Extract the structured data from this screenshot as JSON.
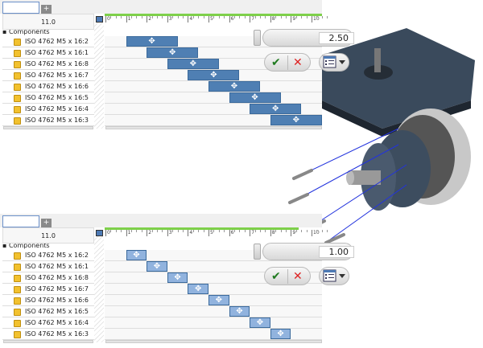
{
  "tab": {
    "add_label": "+"
  },
  "header": {
    "value": "11.0"
  },
  "timeline": {
    "ticks": [
      "0",
      "1",
      "2",
      "3",
      "4",
      "5",
      "6",
      "7",
      "8",
      "9",
      "10"
    ],
    "tree_root": "Components"
  },
  "top": {
    "slider_value": "2.50",
    "bar_color": "#4f7fb3",
    "rows": [
      {
        "label": "ISO 4762 M5 x 16:2",
        "start": 1,
        "end": 3.5
      },
      {
        "label": "ISO 4762 M5 x 16:1",
        "start": 2,
        "end": 4.5
      },
      {
        "label": "ISO 4762 M5 x 16:8",
        "start": 3,
        "end": 5.5
      },
      {
        "label": "ISO 4762 M5 x 16:7",
        "start": 4,
        "end": 6.5
      },
      {
        "label": "ISO 4762 M5 x 16:6",
        "start": 5,
        "end": 7.5
      },
      {
        "label": "ISO 4762 M5 x 16:5",
        "start": 6,
        "end": 8.5
      },
      {
        "label": "ISO 4762 M5 x 16:4",
        "start": 7,
        "end": 9.5
      },
      {
        "label": "ISO 4762 M5 x 16:3",
        "start": 8,
        "end": 10.5
      }
    ]
  },
  "bottom": {
    "slider_value": "1.00",
    "bar_color": "#91b3de",
    "rows": [
      {
        "label": "ISO 4762 M5 x 16:2",
        "start": 1,
        "end": 2
      },
      {
        "label": "ISO 4762 M5 x 16:1",
        "start": 2,
        "end": 3
      },
      {
        "label": "ISO 4762 M5 x 16:8",
        "start": 3,
        "end": 4
      },
      {
        "label": "ISO 4762 M5 x 16:7",
        "start": 4,
        "end": 5
      },
      {
        "label": "ISO 4762 M5 x 16:6",
        "start": 5,
        "end": 6
      },
      {
        "label": "ISO 4762 M5 x 16:5",
        "start": 6,
        "end": 7
      },
      {
        "label": "ISO 4762 M5 x 16:4",
        "start": 7,
        "end": 8
      },
      {
        "label": "ISO 4762 M5 x 16:3",
        "start": 8,
        "end": 9
      }
    ]
  },
  "icons": {
    "ok": "checkmark-icon",
    "cancel": "x-icon",
    "menu": "list-dropdown-icon",
    "bar": "move-icon"
  }
}
